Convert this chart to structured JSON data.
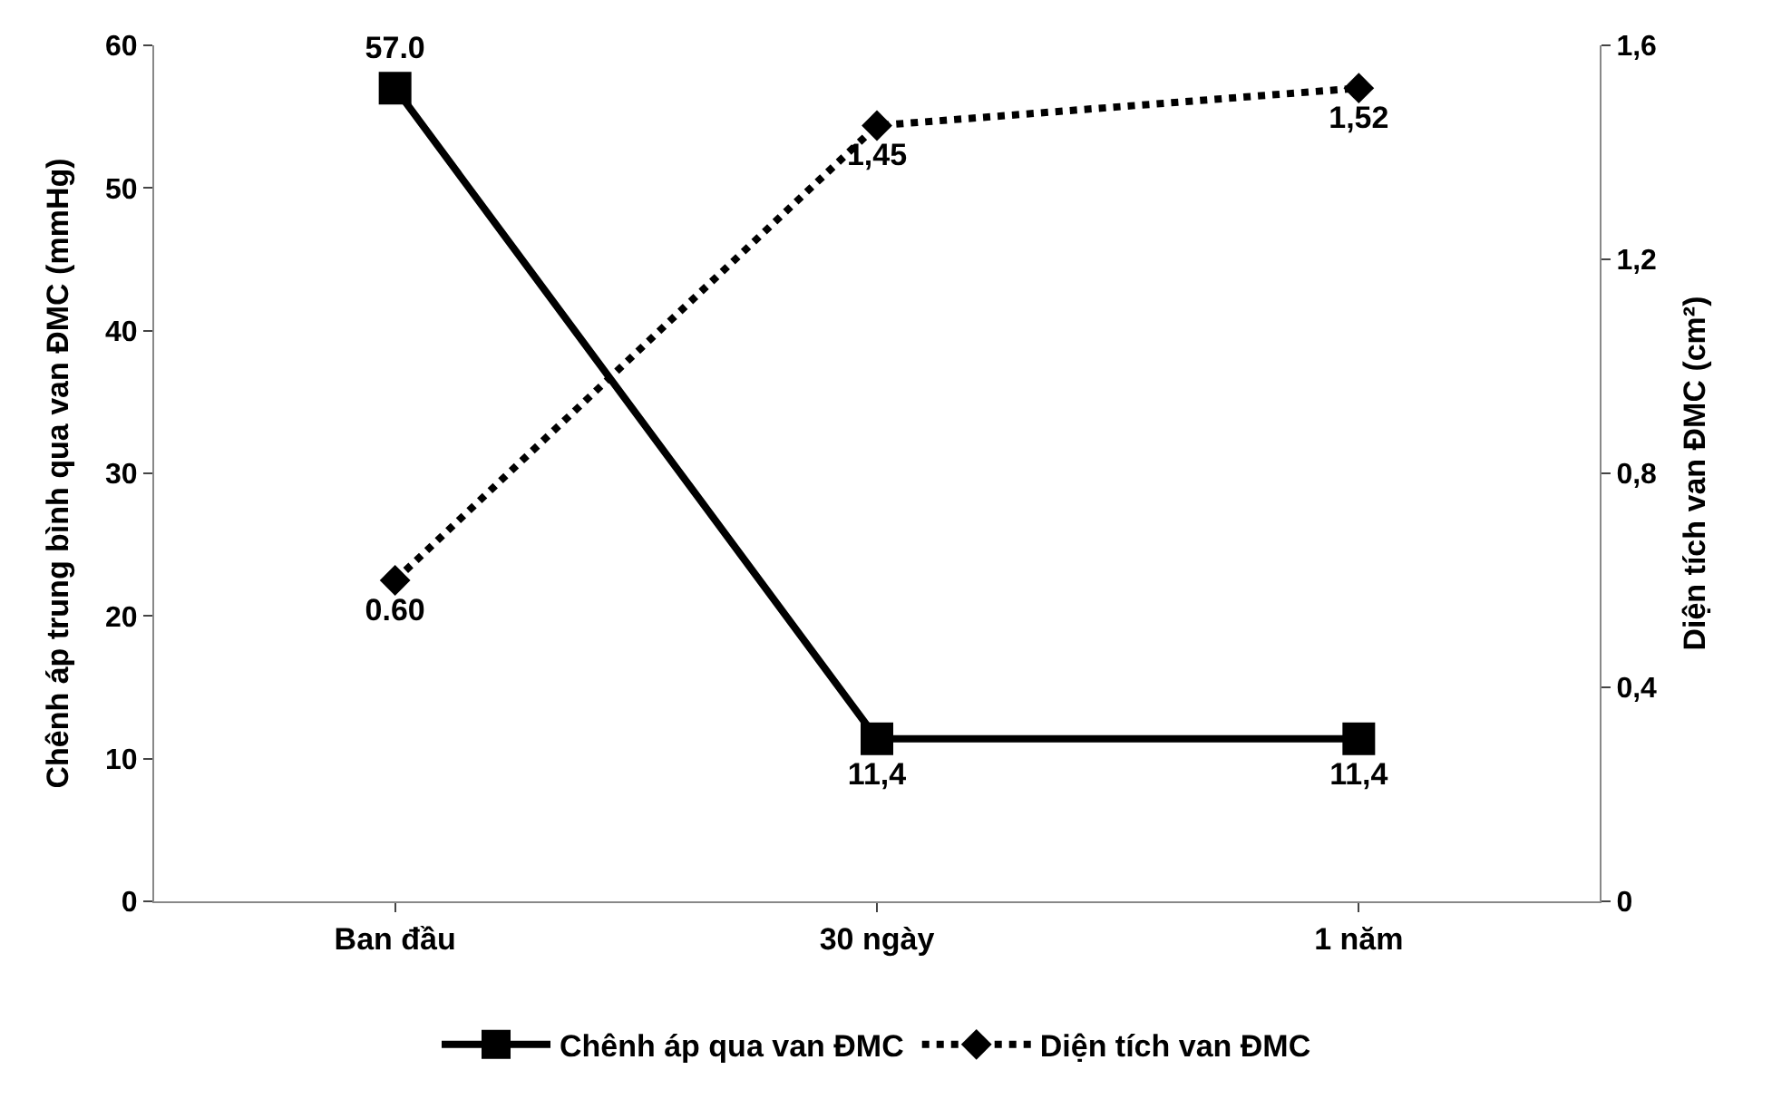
{
  "chart_data": {
    "type": "line",
    "ylabel": "Chênh áp trung bình qua van ĐMC (mmHg)",
    "y2label": "Diện tích van ĐMC (cm²)",
    "categories": [
      "Ban đầu",
      "30 ngày",
      "1 năm"
    ],
    "series": [
      {
        "name": "Chênh áp qua van ĐMC",
        "color": "#000000",
        "values": [
          57.0,
          11.4,
          11.4
        ],
        "value_labels": [
          "57.0",
          "11,4",
          "11,4"
        ],
        "marker": "square",
        "line_style": "solid"
      },
      {
        "name": "Diện tích van ĐMC",
        "color": "#000000",
        "values": [
          0.6,
          1.45,
          1.52
        ],
        "value_labels": [
          "0.60",
          "1,45",
          "1,52"
        ],
        "marker": "diamond",
        "line_style": "dotted",
        "axis": "y2"
      }
    ],
    "ylim": [
      0,
      60
    ],
    "yticks": [
      0,
      10,
      20,
      30,
      40,
      50,
      60
    ],
    "y2lim": [
      0,
      1.6
    ],
    "y2ticks": [
      0,
      {
        "value": 0.4,
        "label": "0,4"
      },
      {
        "value": 0.8,
        "label": "0,8"
      },
      {
        "value": 1.2,
        "label": "1,2"
      },
      {
        "value": 1.6,
        "label": "1,6"
      }
    ],
    "legend": "bottom"
  }
}
